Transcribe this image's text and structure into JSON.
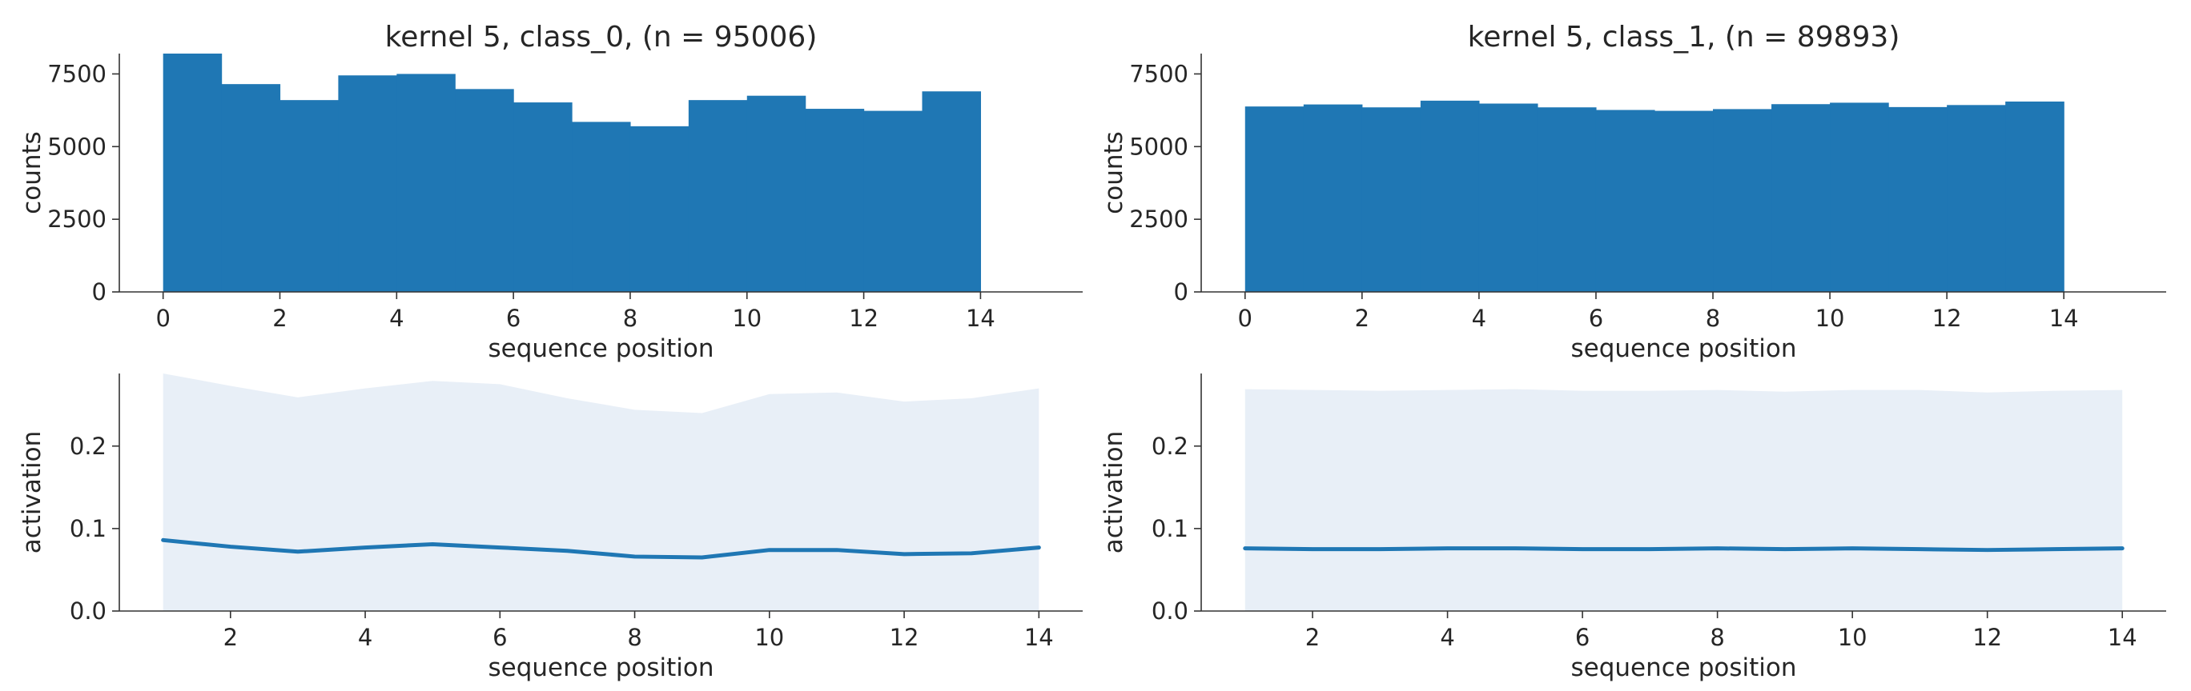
{
  "chart_data": [
    {
      "type": "bar",
      "title": "kernel 5, class_0, (n = 95006)",
      "xlabel": "sequence position",
      "ylabel": "counts",
      "xlim": [
        -0.75,
        15.75
      ],
      "ylim": [
        0,
        8200
      ],
      "xticks": [
        0,
        2,
        4,
        6,
        8,
        10,
        12,
        14
      ],
      "yticks": [
        0,
        2500,
        5000,
        7500
      ],
      "bin_edges": [
        0,
        1,
        2,
        3,
        4,
        5,
        6,
        7,
        8,
        9,
        10,
        11,
        12,
        13,
        14
      ],
      "values": [
        8200,
        7150,
        6600,
        7450,
        7500,
        6980,
        6520,
        5850,
        5700,
        6600,
        6750,
        6300,
        6230,
        6900
      ],
      "color": "#1f77b4"
    },
    {
      "type": "bar",
      "title": "kernel 5, class_1, (n = 89893)",
      "xlabel": "sequence position",
      "ylabel": "counts",
      "xlim": [
        -0.75,
        15.75
      ],
      "ylim": [
        0,
        8200
      ],
      "xticks": [
        0,
        2,
        4,
        6,
        8,
        10,
        12,
        14
      ],
      "yticks": [
        0,
        2500,
        5000,
        7500
      ],
      "bin_edges": [
        0,
        1,
        2,
        3,
        4,
        5,
        6,
        7,
        8,
        9,
        10,
        11,
        12,
        13,
        14
      ],
      "values": [
        6380,
        6450,
        6350,
        6580,
        6480,
        6350,
        6260,
        6230,
        6290,
        6460,
        6510,
        6360,
        6430,
        6550
      ],
      "color": "#1f77b4"
    },
    {
      "type": "area",
      "title": "",
      "xlabel": "sequence position",
      "ylabel": "activation",
      "xlim": [
        0.35,
        14.65
      ],
      "ylim": [
        0,
        0.288
      ],
      "xticks": [
        2,
        4,
        6,
        8,
        10,
        12,
        14
      ],
      "yticks": [
        0.0,
        0.1,
        0.2
      ],
      "x": [
        1,
        2,
        3,
        4,
        5,
        6,
        7,
        8,
        9,
        10,
        11,
        12,
        13,
        14
      ],
      "mean": [
        0.086,
        0.078,
        0.072,
        0.077,
        0.081,
        0.077,
        0.073,
        0.066,
        0.065,
        0.074,
        0.074,
        0.069,
        0.07,
        0.077
      ],
      "upper": [
        0.288,
        0.273,
        0.259,
        0.27,
        0.279,
        0.275,
        0.258,
        0.244,
        0.24,
        0.263,
        0.265,
        0.254,
        0.258,
        0.27
      ],
      "line_color": "#1f77b4",
      "band_color": "#e8eff7"
    },
    {
      "type": "area",
      "title": "",
      "xlabel": "sequence position",
      "ylabel": "activation",
      "xlim": [
        0.35,
        14.65
      ],
      "ylim": [
        0,
        0.288
      ],
      "xticks": [
        2,
        4,
        6,
        8,
        10,
        12,
        14
      ],
      "yticks": [
        0.0,
        0.1,
        0.2
      ],
      "x": [
        1,
        2,
        3,
        4,
        5,
        6,
        7,
        8,
        9,
        10,
        11,
        12,
        13,
        14
      ],
      "mean": [
        0.076,
        0.075,
        0.075,
        0.076,
        0.076,
        0.075,
        0.075,
        0.076,
        0.075,
        0.076,
        0.075,
        0.074,
        0.075,
        0.076
      ],
      "upper": [
        0.269,
        0.268,
        0.267,
        0.268,
        0.269,
        0.267,
        0.267,
        0.268,
        0.266,
        0.268,
        0.268,
        0.265,
        0.267,
        0.268
      ],
      "line_color": "#1f77b4",
      "band_color": "#e8eff7"
    }
  ]
}
